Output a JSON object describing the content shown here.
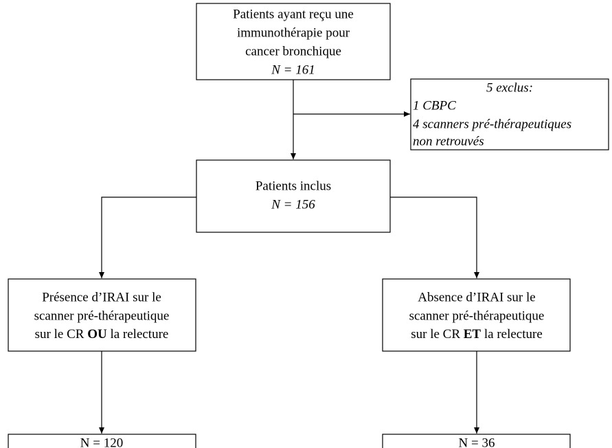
{
  "nodes": [
    {
      "lines": [
        "Patients ayant reçu une",
        "immunothérapie pour",
        "cancer bronchique"
      ],
      "count": "N = 161"
    },
    {
      "title": "5 exclus:",
      "lines": [
        "1 CBPC",
        "4 scanners pré-thérapeutiques",
        "non retrouvés"
      ]
    },
    {
      "lines": [
        "Patients inclus"
      ],
      "count": "N = 156"
    },
    {
      "lines": [
        "Présence d’IRAI sur le",
        "scanner pré-thérapeutique"
      ],
      "last_line": [
        "sur le CR ",
        "OU",
        " la relecture"
      ]
    },
    {
      "lines": [
        "Absence d’IRAI sur le",
        "scanner pré-thérapeutique"
      ],
      "last_line": [
        "sur le CR ",
        "ET",
        " la relecture"
      ]
    },
    {
      "lines": [
        "N = 120"
      ]
    },
    {
      "lines": [
        "N = 36"
      ]
    }
  ]
}
